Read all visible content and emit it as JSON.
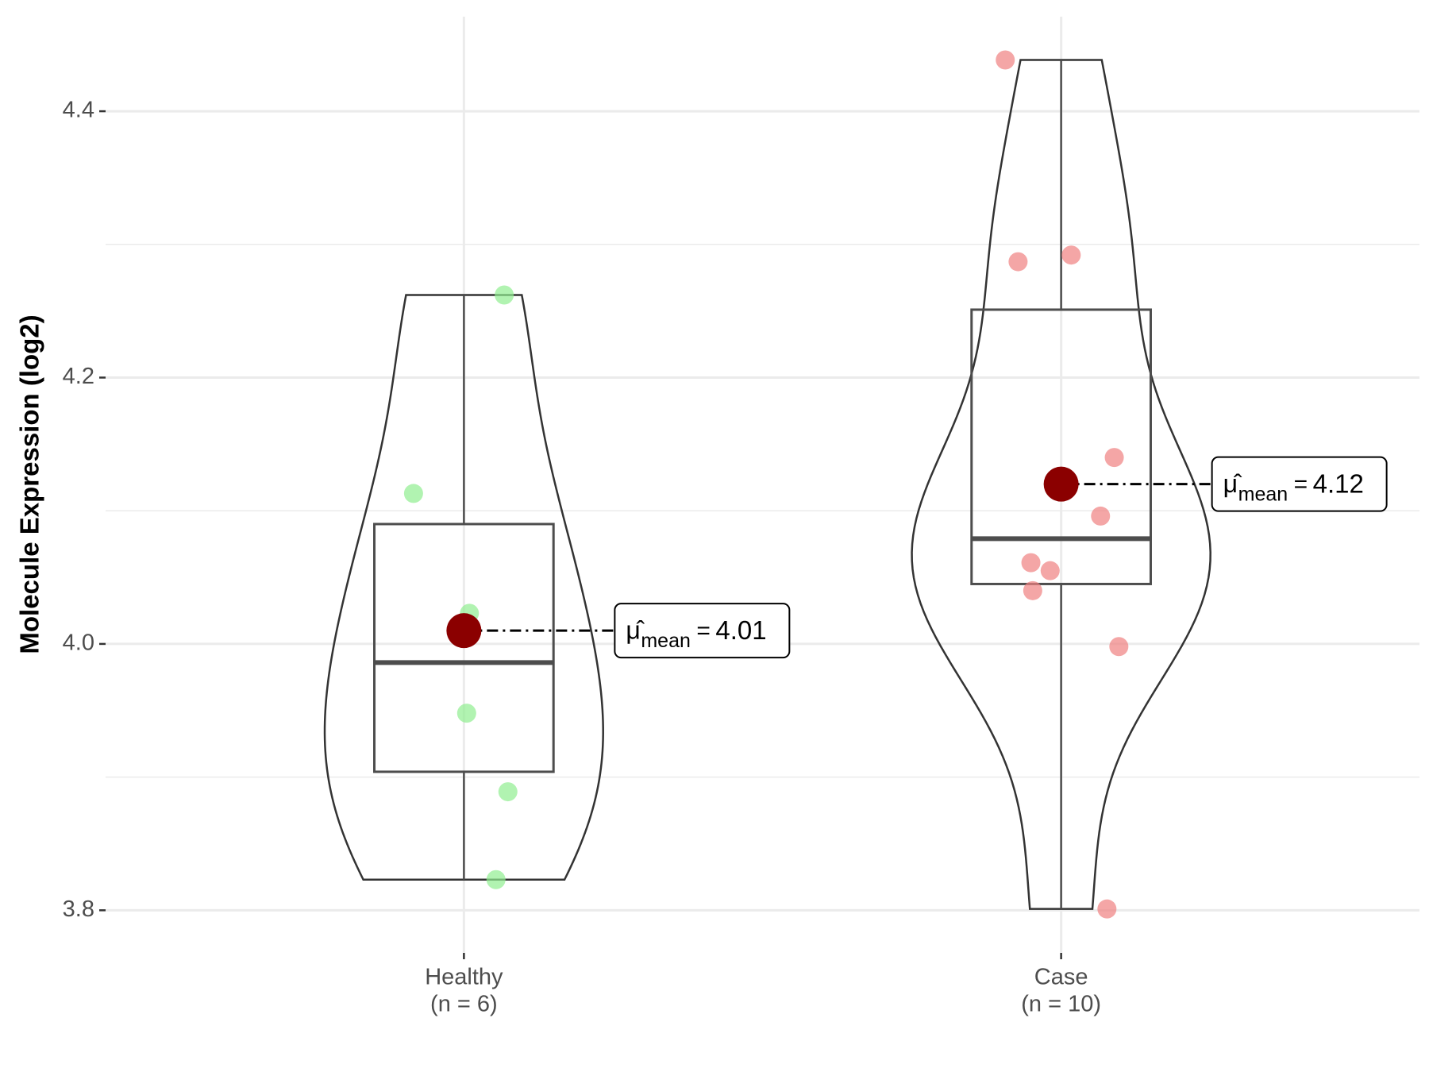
{
  "chart_data": {
    "type": "violin",
    "ylabel": "Molecule Expression (log2)",
    "ylim": [
      3.768,
      4.471
    ],
    "yticks": [
      3.8,
      {
        "value": 4,
        "label": "4.0"
      },
      4.2,
      4.4
    ],
    "yminor": [
      3.9,
      4.1,
      4.3
    ],
    "grid": true,
    "mean_color": "#8b0000",
    "mean_symbol": "μ̂",
    "mean_subscript": "mean",
    "mean_equals": "=",
    "series": [
      {
        "name": "Healthy",
        "n_label": "(n = 6)",
        "color": "#90ee90",
        "values": [
          4.262,
          4.113,
          4.023,
          3.948,
          3.889,
          3.823
        ],
        "box": {
          "whisker_low": 3.823,
          "q1": 3.904,
          "median": 3.986,
          "q3": 4.09,
          "whisker_high": 4.262
        },
        "mean": 4.01
      },
      {
        "name": "Case",
        "n_label": "(n = 10)",
        "color": "#f08080",
        "values": [
          4.4385,
          4.287,
          4.292,
          4.14,
          4.096,
          4.061,
          4.055,
          4.04,
          3.998,
          3.801
        ],
        "box": {
          "whisker_low": 3.801,
          "q1": 4.045,
          "median": 4.079,
          "q3": 4.251,
          "whisker_high": 4.4385
        },
        "mean": 4.12
      }
    ]
  }
}
